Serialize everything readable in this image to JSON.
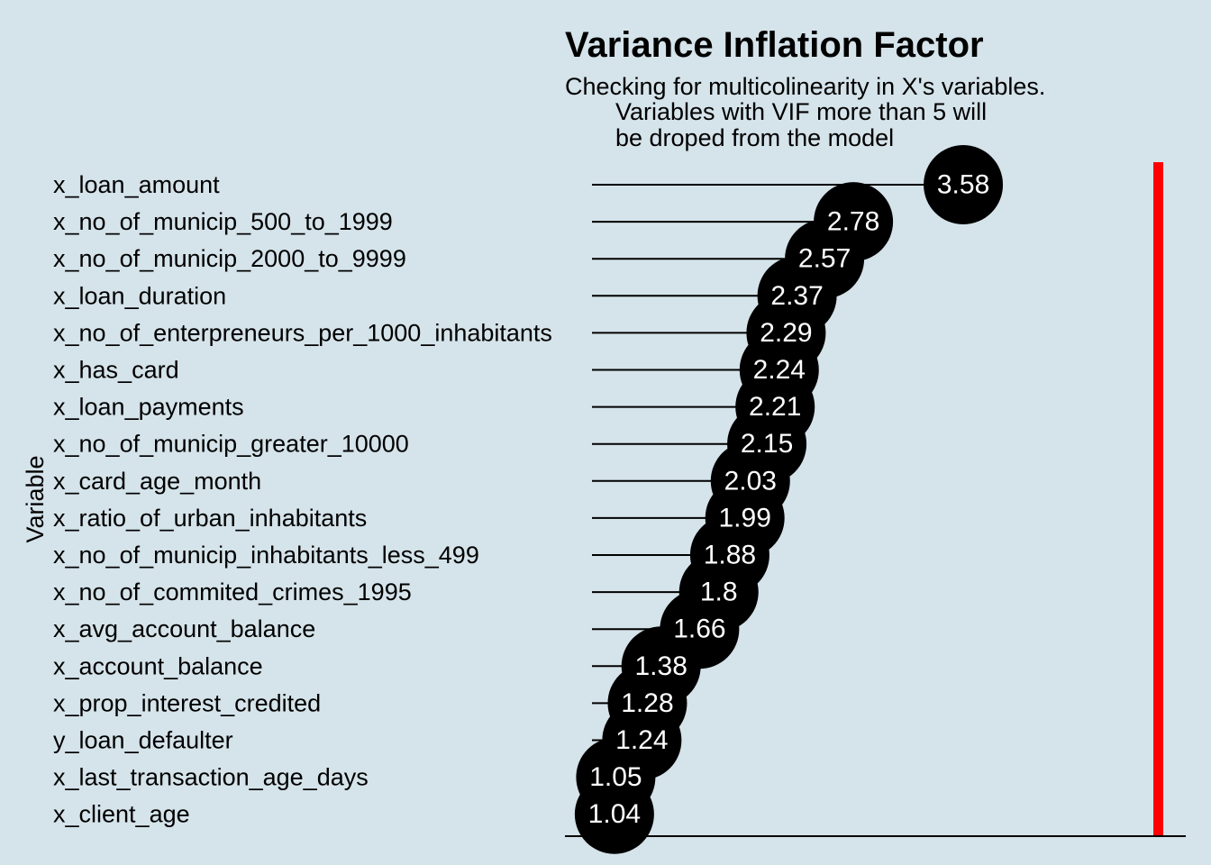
{
  "chart_data": {
    "type": "lollipop",
    "title": "Variance Inflation Factor",
    "subtitle_lines": [
      "Checking for multicolinearity in X's variables.",
      "Variables with VIF more than 5 will",
      "be droped from the model"
    ],
    "ylabel": "Variable",
    "xlabel": "",
    "categories": [
      "x_loan_amount",
      "x_no_of_municip_500_to_1999",
      "x_no_of_municip_2000_to_9999",
      "x_loan_duration",
      "x_no_of_enterpreneurs_per_1000_inhabitants",
      "x_has_card",
      "x_loan_payments",
      "x_no_of_municip_greater_10000",
      "x_card_age_month",
      "x_ratio_of_urban_inhabitants",
      "x_no_of_municip_inhabitants_less_499",
      "x_no_of_commited_crimes_1995",
      "x_avg_account_balance",
      "x_account_balance",
      "x_prop_interest_credited",
      "y_loan_defaulter",
      "x_last_transaction_age_days",
      "x_client_age"
    ],
    "values": [
      3.58,
      2.78,
      2.57,
      2.37,
      2.29,
      2.24,
      2.21,
      2.15,
      2.03,
      1.99,
      1.88,
      1.8,
      1.66,
      1.38,
      1.28,
      1.24,
      1.05,
      1.04
    ],
    "value_labels": [
      "3.58",
      "2.78",
      "2.57",
      "2.37",
      "2.29",
      "2.24",
      "2.21",
      "2.15",
      "2.03",
      "1.99",
      "1.88",
      "1.8",
      "1.66",
      "1.38",
      "1.28",
      "1.24",
      "1.05",
      "1.04"
    ],
    "threshold": 5,
    "colors": {
      "background": "#d5e3ea",
      "point": "#000000",
      "segment": "#000000",
      "label": "#ffffff",
      "threshold_line": "#ff0000"
    },
    "grid": false,
    "legend": "none"
  }
}
